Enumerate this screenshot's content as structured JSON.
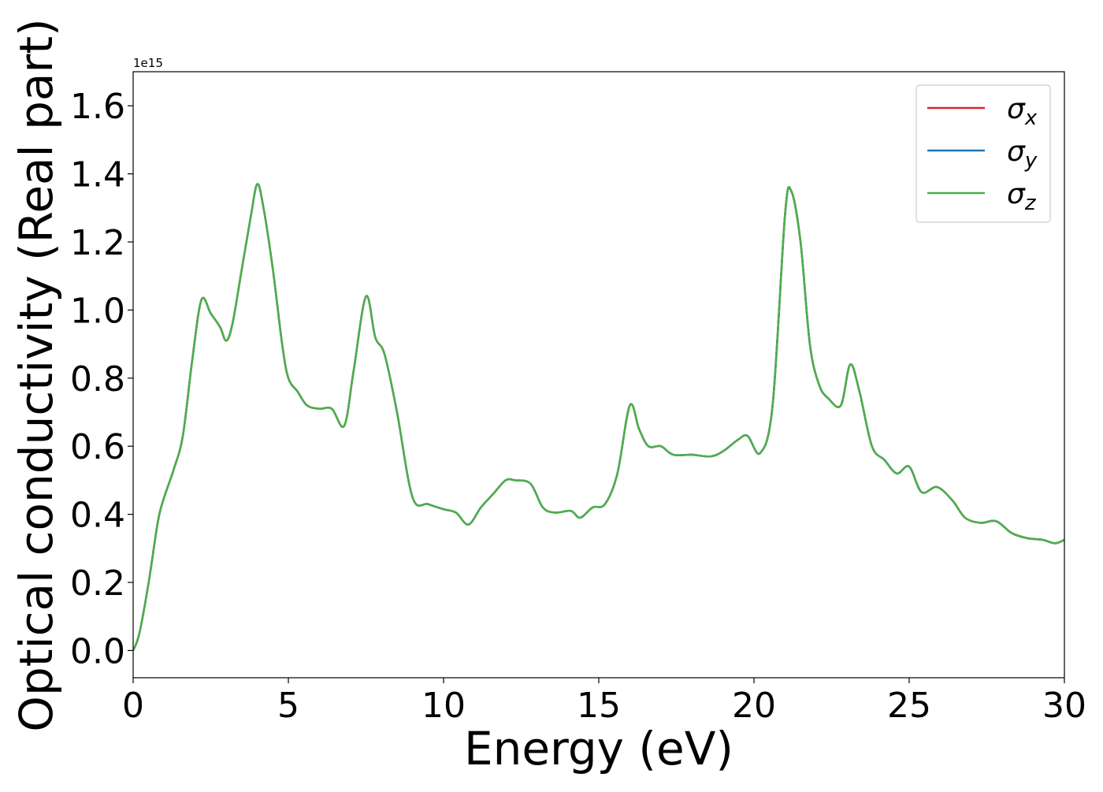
{
  "chart_data": {
    "type": "line",
    "title": "",
    "xlabel": "Energy (eV)",
    "ylabel": "Optical conductivity (Real part)",
    "y_offset_label": "1e15",
    "xlim": [
      0,
      30
    ],
    "ylim": [
      -0.08,
      1.7
    ],
    "xticks": [
      0,
      5,
      10,
      15,
      20,
      25,
      30
    ],
    "yticks": [
      0.0,
      0.2,
      0.4,
      0.6,
      0.8,
      1.0,
      1.2,
      1.4,
      1.6
    ],
    "xtick_labels": [
      "0",
      "5",
      "10",
      "15",
      "20",
      "25",
      "30"
    ],
    "ytick_labels": [
      "0.0",
      "0.2",
      "0.4",
      "0.6",
      "0.8",
      "1.0",
      "1.2",
      "1.4",
      "1.6"
    ],
    "grid": false,
    "legend": {
      "placement": "top-right",
      "entries": [
        {
          "symbol": "σ",
          "subscript": "x",
          "color": "#d62728"
        },
        {
          "symbol": "σ",
          "subscript": "y",
          "color": "#1f77b4"
        },
        {
          "symbol": "σ",
          "subscript": "z",
          "color": "#4daf4a"
        }
      ]
    },
    "x": [
      0,
      0.2,
      0.5,
      0.8,
      1.0,
      1.3,
      1.6,
      1.9,
      2.2,
      2.5,
      2.8,
      3.0,
      3.2,
      3.5,
      3.8,
      4.0,
      4.2,
      4.5,
      4.8,
      5.0,
      5.3,
      5.6,
      6.0,
      6.4,
      6.8,
      7.1,
      7.5,
      7.8,
      8.1,
      8.5,
      9.0,
      9.5,
      10.0,
      10.4,
      10.8,
      11.2,
      11.6,
      12.0,
      12.3,
      12.8,
      13.2,
      13.6,
      14.1,
      14.4,
      14.8,
      15.2,
      15.6,
      16.0,
      16.3,
      16.6,
      17.0,
      17.4,
      18.0,
      18.6,
      19.0,
      19.5,
      19.8,
      20.2,
      20.6,
      21.0,
      21.2,
      21.5,
      21.8,
      22.1,
      22.4,
      22.8,
      23.1,
      23.4,
      23.8,
      24.2,
      24.6,
      25.0,
      25.4,
      25.9,
      26.4,
      26.8,
      27.3,
      27.8,
      28.3,
      28.8,
      29.3,
      29.7,
      30.0
    ],
    "series": [
      {
        "color": "#d62728",
        "values": [
          0.0,
          0.05,
          0.2,
          0.38,
          0.45,
          0.53,
          0.63,
          0.85,
          1.03,
          0.99,
          0.95,
          0.91,
          0.96,
          1.12,
          1.28,
          1.37,
          1.3,
          1.12,
          0.9,
          0.8,
          0.76,
          0.72,
          0.71,
          0.71,
          0.66,
          0.82,
          1.04,
          0.92,
          0.87,
          0.7,
          0.45,
          0.43,
          0.415,
          0.405,
          0.37,
          0.42,
          0.46,
          0.5,
          0.5,
          0.49,
          0.42,
          0.405,
          0.41,
          0.39,
          0.42,
          0.43,
          0.52,
          0.72,
          0.65,
          0.6,
          0.6,
          0.575,
          0.575,
          0.57,
          0.585,
          0.62,
          0.63,
          0.58,
          0.72,
          1.28,
          1.35,
          1.2,
          0.9,
          0.78,
          0.74,
          0.72,
          0.84,
          0.76,
          0.6,
          0.56,
          0.52,
          0.54,
          0.465,
          0.48,
          0.44,
          0.39,
          0.375,
          0.38,
          0.345,
          0.33,
          0.325,
          0.315,
          0.325
        ]
      },
      {
        "color": "#1f77b4",
        "values": [
          0.0,
          0.05,
          0.2,
          0.38,
          0.45,
          0.53,
          0.63,
          0.85,
          1.03,
          0.99,
          0.95,
          0.91,
          0.96,
          1.12,
          1.28,
          1.37,
          1.3,
          1.12,
          0.9,
          0.8,
          0.76,
          0.72,
          0.71,
          0.71,
          0.66,
          0.82,
          1.04,
          0.92,
          0.87,
          0.7,
          0.45,
          0.43,
          0.415,
          0.405,
          0.37,
          0.42,
          0.46,
          0.5,
          0.5,
          0.49,
          0.42,
          0.405,
          0.41,
          0.39,
          0.42,
          0.43,
          0.52,
          0.72,
          0.65,
          0.6,
          0.6,
          0.575,
          0.575,
          0.57,
          0.585,
          0.62,
          0.63,
          0.58,
          0.72,
          1.28,
          1.35,
          1.2,
          0.9,
          0.78,
          0.74,
          0.72,
          0.84,
          0.76,
          0.6,
          0.56,
          0.52,
          0.54,
          0.465,
          0.48,
          0.44,
          0.39,
          0.375,
          0.38,
          0.345,
          0.33,
          0.325,
          0.315,
          0.325
        ]
      },
      {
        "color": "#4daf4a",
        "values": [
          0.0,
          0.05,
          0.2,
          0.38,
          0.45,
          0.53,
          0.63,
          0.85,
          1.03,
          0.99,
          0.95,
          0.91,
          0.96,
          1.12,
          1.28,
          1.37,
          1.3,
          1.12,
          0.9,
          0.8,
          0.76,
          0.72,
          0.71,
          0.71,
          0.66,
          0.82,
          1.04,
          0.92,
          0.87,
          0.7,
          0.45,
          0.43,
          0.415,
          0.405,
          0.37,
          0.42,
          0.46,
          0.5,
          0.5,
          0.49,
          0.42,
          0.405,
          0.41,
          0.39,
          0.42,
          0.43,
          0.52,
          0.72,
          0.65,
          0.6,
          0.6,
          0.575,
          0.575,
          0.57,
          0.585,
          0.62,
          0.63,
          0.58,
          0.72,
          1.28,
          1.35,
          1.2,
          0.9,
          0.78,
          0.74,
          0.72,
          0.84,
          0.76,
          0.6,
          0.56,
          0.52,
          0.54,
          0.465,
          0.48,
          0.44,
          0.39,
          0.375,
          0.38,
          0.345,
          0.33,
          0.325,
          0.315,
          0.325
        ]
      }
    ]
  }
}
